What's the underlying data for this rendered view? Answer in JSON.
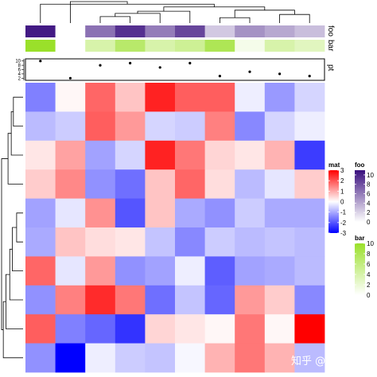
{
  "watermark": "知乎 @李小月",
  "chart_data": {
    "type": "heatmap",
    "n_rows": 10,
    "n_cols": 10,
    "matrix": [
      [
        -1.5,
        0.1,
        1.8,
        0.7,
        2.6,
        1.9,
        1.9,
        -0.2,
        -1.2,
        -0.5
      ],
      [
        -0.8,
        -0.6,
        1.9,
        1.2,
        -0.5,
        -0.6,
        1.5,
        -1.4,
        -0.5,
        -0.2
      ],
      [
        0.3,
        1.1,
        -1.1,
        -0.5,
        2.6,
        1.6,
        0.5,
        0.3,
        0.9,
        -2.3
      ],
      [
        0.6,
        1.4,
        -1.3,
        -1.7,
        0.7,
        1.8,
        0.4,
        -0.8,
        -0.3,
        0.6
      ],
      [
        -1.1,
        -0.3,
        1.3,
        -2.0,
        0.7,
        -1.0,
        -1.3,
        -0.6,
        -1.0,
        -1.0
      ],
      [
        -1.0,
        0.7,
        0.4,
        0.3,
        -0.7,
        -1.4,
        -0.6,
        -0.8,
        -0.7,
        -0.8
      ],
      [
        1.8,
        -0.3,
        1.2,
        -1.3,
        -1.1,
        -0.2,
        -1.9,
        -1.1,
        -1.0,
        -0.8
      ],
      [
        -1.3,
        1.5,
        2.5,
        1.6,
        -1.7,
        -0.7,
        -1.8,
        1.2,
        0.6,
        -1.4
      ],
      [
        1.9,
        -1.5,
        -1.8,
        -2.4,
        0.5,
        0.3,
        0.1,
        1.6,
        0.1,
        3.0
      ],
      [
        -1.3,
        -3.0,
        -0.2,
        -0.6,
        -0.7,
        -0.1,
        0.9,
        1.6,
        0.9,
        -0.8
      ]
    ],
    "annotations": [
      {
        "name": "foo",
        "type": "continuous",
        "values": [
          10.5,
          0,
          6.5,
          9.5,
          6.0,
          8.5,
          2.5,
          5.0,
          4.0,
          3.0
        ]
      },
      {
        "name": "bar",
        "type": "continuous",
        "values": [
          10,
          0,
          4,
          7,
          4,
          5,
          8,
          1,
          4,
          3
        ]
      },
      {
        "name": "pt",
        "type": "points",
        "values": [
          10,
          2,
          8,
          9,
          7,
          9,
          3,
          5,
          4,
          3
        ]
      }
    ],
    "pt_axis": {
      "ticks": [
        10,
        8,
        6,
        4,
        2
      ],
      "range": [
        1,
        11
      ]
    },
    "legends": [
      {
        "title": "mat",
        "ticks": [
          3,
          2,
          1,
          0,
          -1,
          -2,
          -3
        ],
        "range": [
          -3,
          3
        ],
        "colors": {
          "low": "#0000ff",
          "mid": "#ffffff",
          "high": "#ff0000"
        }
      },
      {
        "title": "foo",
        "ticks": [
          10,
          8,
          6,
          4,
          2,
          0
        ],
        "range": [
          0,
          11
        ],
        "colors": {
          "low": "#ffffff",
          "high": "#3a0f7e"
        }
      },
      {
        "title": "bar",
        "ticks": [
          10,
          8,
          6,
          4,
          2,
          0
        ],
        "range": [
          0,
          10
        ],
        "colors": {
          "low": "#ffffff",
          "high": "#9ae02a"
        }
      }
    ],
    "row_dendrogram": [
      [
        0,
        1,
        0.45
      ],
      [
        10,
        2,
        0.55
      ],
      [
        11,
        3,
        0.7
      ],
      [
        4,
        5,
        0.3
      ],
      [
        13,
        6,
        0.5
      ],
      [
        14,
        7,
        0.62
      ],
      [
        15,
        8,
        0.8
      ],
      [
        16,
        9,
        0.92
      ],
      [
        12,
        17,
        1.0
      ]
    ],
    "column_dendrogram": [
      [
        2,
        3,
        0.3
      ],
      [
        10,
        4,
        0.45
      ],
      [
        11,
        5,
        0.55
      ],
      [
        6,
        7,
        0.25
      ],
      [
        8,
        9,
        0.4
      ],
      [
        13,
        14,
        0.6
      ],
      [
        12,
        15,
        0.75
      ],
      [
        0,
        16,
        0.88
      ],
      [
        1,
        17,
        1.0
      ]
    ]
  }
}
